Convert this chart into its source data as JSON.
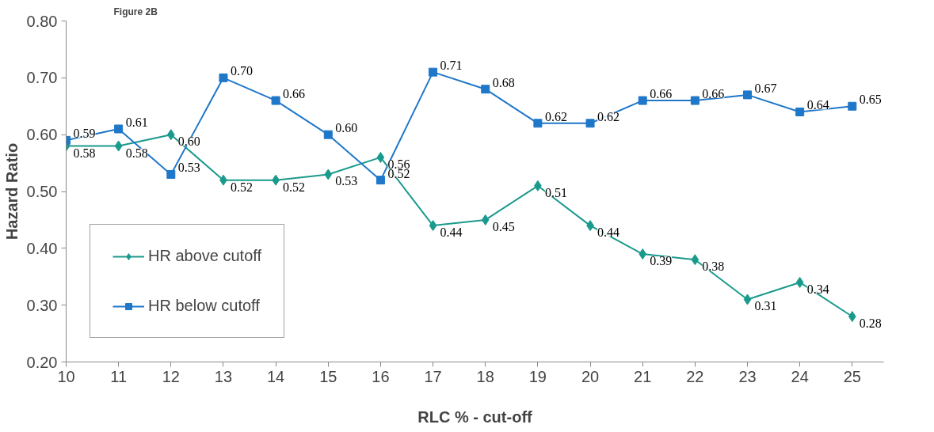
{
  "chart_data": {
    "type": "line",
    "title": "Figure 2B",
    "xlabel": "RLC % - cut-off",
    "ylabel": "Hazard Ratio",
    "categories": [
      "10",
      "11",
      "12",
      "13",
      "14",
      "15",
      "16",
      "17",
      "18",
      "19",
      "20",
      "21",
      "22",
      "23",
      "24",
      "25"
    ],
    "series": [
      {
        "name": "HR above cutoff",
        "color": "#1a9a8c",
        "marker": "diamond",
        "values": [
          0.58,
          0.58,
          0.6,
          0.52,
          0.52,
          0.53,
          0.56,
          0.44,
          0.45,
          0.51,
          0.44,
          0.39,
          0.38,
          0.31,
          0.34,
          0.28
        ],
        "value_labels": [
          "0.58",
          "0.58",
          "0.60",
          "0.52",
          "0.52",
          "0.53",
          "0.56",
          "0.44",
          "0.45",
          "0.51",
          "0.44",
          "0.39",
          "0.38",
          "0.31",
          "0.34",
          "0.28"
        ]
      },
      {
        "name": "HR below cutoff",
        "color": "#1f77c9",
        "marker": "square",
        "values": [
          0.59,
          0.61,
          0.53,
          0.7,
          0.66,
          0.6,
          0.52,
          0.71,
          0.68,
          0.62,
          0.62,
          0.66,
          0.66,
          0.67,
          0.64,
          0.65
        ],
        "value_labels": [
          "0.59",
          "0.61",
          "0.53",
          "0.70",
          "0.66",
          "0.60",
          "0.52",
          "0.71",
          "0.68",
          "0.62",
          "0.62",
          "0.66",
          "0.66",
          "0.67",
          "0.64",
          "0.65"
        ]
      }
    ],
    "ylim": [
      0.2,
      0.8
    ],
    "yticks": [
      {
        "value": 0.2,
        "label": "0.20"
      },
      {
        "value": 0.3,
        "label": "0.30"
      },
      {
        "value": 0.4,
        "label": "0.40"
      },
      {
        "value": 0.5,
        "label": "0.50"
      },
      {
        "value": 0.6,
        "label": "0.60"
      },
      {
        "value": 0.7,
        "label": "0.70"
      },
      {
        "value": 0.8,
        "label": "0.80"
      }
    ],
    "grid": false,
    "legend": "bottom left"
  }
}
